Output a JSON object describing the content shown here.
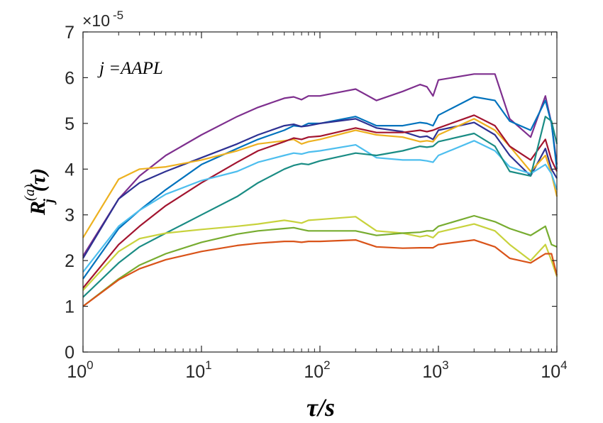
{
  "chart_data": {
    "type": "line",
    "annotation": "j =AAPL",
    "exponent_label": "×10",
    "exponent_power": "-5",
    "xlabel": "τ/s",
    "ylabel_main": "R",
    "ylabel_sub": "j",
    "ylabel_sup": "(a)",
    "ylabel_arg": "(τ)",
    "xscale": "log",
    "xlim": [
      1,
      10000
    ],
    "ylim": [
      0,
      7
    ],
    "grid": false,
    "x_tick_labels": [
      {
        "value": 1,
        "base": "10",
        "exp": "0"
      },
      {
        "value": 10,
        "base": "10",
        "exp": "1"
      },
      {
        "value": 100,
        "base": "10",
        "exp": "2"
      },
      {
        "value": 1000,
        "base": "10",
        "exp": "3"
      },
      {
        "value": 10000,
        "base": "10",
        "exp": "4"
      }
    ],
    "y_tick_labels": [
      "0",
      "1",
      "2",
      "3",
      "4",
      "5",
      "6",
      "7"
    ],
    "series": [
      {
        "color": "#7E2F8E",
        "x": [
          1,
          2,
          3,
          5,
          10,
          20,
          30,
          50,
          60,
          70,
          80,
          100,
          200,
          300,
          500,
          700,
          800,
          900,
          1000,
          2000,
          3000,
          4000,
          6000,
          8000,
          9000,
          10000
        ],
        "y": [
          2.1,
          3.35,
          3.85,
          4.3,
          4.75,
          5.15,
          5.35,
          5.55,
          5.58,
          5.52,
          5.6,
          5.6,
          5.75,
          5.5,
          5.7,
          5.85,
          5.8,
          5.6,
          5.95,
          6.08,
          6.08,
          5.1,
          4.7,
          5.6,
          5.0,
          4.1
        ]
      },
      {
        "color": "#0072BD",
        "x": [
          1,
          2,
          3,
          5,
          10,
          20,
          30,
          50,
          60,
          70,
          80,
          100,
          200,
          300,
          500,
          700,
          800,
          900,
          1000,
          2000,
          3000,
          4000,
          6000,
          8000,
          9000,
          10000
        ],
        "y": [
          1.6,
          2.7,
          3.1,
          3.55,
          4.1,
          4.45,
          4.65,
          4.85,
          4.95,
          4.93,
          5.0,
          5.0,
          5.15,
          4.95,
          4.95,
          5.02,
          5.0,
          4.95,
          5.18,
          5.58,
          5.5,
          5.05,
          4.85,
          5.5,
          5.0,
          4.0
        ]
      },
      {
        "color": "#2E3192",
        "x": [
          1,
          2,
          3,
          5,
          10,
          20,
          30,
          50,
          60,
          70,
          80,
          100,
          200,
          300,
          500,
          700,
          800,
          900,
          1000,
          2000,
          3000,
          4000,
          6000,
          8000,
          9000,
          10000
        ],
        "y": [
          2.05,
          3.35,
          3.7,
          3.95,
          4.25,
          4.55,
          4.75,
          4.95,
          4.98,
          4.93,
          4.95,
          5.0,
          5.1,
          4.9,
          4.82,
          4.7,
          4.72,
          4.65,
          4.85,
          5.02,
          4.75,
          4.3,
          3.85,
          4.45,
          4.0,
          3.8
        ]
      },
      {
        "color": "#EDB120",
        "x": [
          1,
          2,
          3,
          5,
          10,
          20,
          30,
          50,
          60,
          70,
          80,
          100,
          200,
          300,
          500,
          700,
          800,
          900,
          1000,
          2000,
          3000,
          4000,
          6000,
          8000,
          9000,
          10000
        ],
        "y": [
          2.5,
          3.78,
          4.0,
          4.05,
          4.2,
          4.4,
          4.55,
          4.62,
          4.65,
          4.55,
          4.6,
          4.65,
          4.85,
          4.75,
          4.7,
          4.6,
          4.62,
          4.6,
          4.75,
          5.1,
          4.85,
          4.5,
          3.95,
          4.3,
          3.9,
          3.4
        ]
      },
      {
        "color": "#A2142F",
        "x": [
          1,
          2,
          3,
          5,
          10,
          20,
          30,
          50,
          60,
          70,
          80,
          100,
          200,
          300,
          500,
          700,
          800,
          900,
          1000,
          2000,
          3000,
          4000,
          6000,
          8000,
          9000,
          10000
        ],
        "y": [
          1.4,
          2.35,
          2.75,
          3.2,
          3.7,
          4.15,
          4.4,
          4.6,
          4.68,
          4.65,
          4.7,
          4.72,
          4.9,
          4.8,
          4.8,
          4.85,
          4.82,
          4.85,
          4.9,
          5.18,
          4.95,
          4.5,
          4.2,
          4.65,
          4.2,
          3.95
        ]
      },
      {
        "color": "#4DBEEE",
        "x": [
          1,
          2,
          3,
          5,
          10,
          20,
          30,
          50,
          60,
          70,
          80,
          100,
          200,
          300,
          500,
          700,
          800,
          900,
          1000,
          2000,
          3000,
          4000,
          6000,
          8000,
          9000,
          10000
        ],
        "y": [
          1.75,
          2.75,
          3.1,
          3.45,
          3.75,
          3.95,
          4.15,
          4.3,
          4.35,
          4.33,
          4.37,
          4.4,
          4.53,
          4.25,
          4.2,
          4.2,
          4.18,
          4.15,
          4.3,
          4.62,
          4.4,
          4.05,
          3.9,
          4.1,
          3.9,
          3.55
        ]
      },
      {
        "color": "#1A8C84",
        "x": [
          1,
          2,
          3,
          5,
          10,
          20,
          30,
          50,
          60,
          70,
          80,
          100,
          200,
          300,
          500,
          700,
          800,
          900,
          1000,
          2000,
          3000,
          4000,
          6000,
          8000,
          9000,
          10000
        ],
        "y": [
          1.2,
          1.95,
          2.3,
          2.6,
          3.0,
          3.4,
          3.7,
          4.0,
          4.08,
          4.12,
          4.1,
          4.18,
          4.35,
          4.3,
          4.4,
          4.5,
          4.48,
          4.5,
          4.6,
          4.78,
          4.5,
          3.95,
          3.85,
          5.15,
          5.05,
          4.55
        ]
      },
      {
        "color": "#C8D23C",
        "x": [
          1,
          2,
          3,
          5,
          10,
          20,
          30,
          50,
          60,
          70,
          80,
          100,
          200,
          300,
          500,
          700,
          800,
          900,
          1000,
          2000,
          3000,
          4000,
          6000,
          8000,
          9000,
          10000
        ],
        "y": [
          1.35,
          2.2,
          2.48,
          2.6,
          2.68,
          2.75,
          2.8,
          2.88,
          2.85,
          2.82,
          2.88,
          2.9,
          2.96,
          2.65,
          2.6,
          2.52,
          2.55,
          2.5,
          2.62,
          2.8,
          2.65,
          2.35,
          2.0,
          2.35,
          2.0,
          1.65
        ]
      },
      {
        "color": "#77AC30",
        "x": [
          1,
          2,
          3,
          5,
          10,
          20,
          30,
          50,
          60,
          70,
          80,
          100,
          200,
          300,
          500,
          700,
          800,
          900,
          1000,
          2000,
          3000,
          4000,
          6000,
          8000,
          9000,
          10000
        ],
        "y": [
          1.0,
          1.6,
          1.9,
          2.15,
          2.4,
          2.58,
          2.65,
          2.7,
          2.72,
          2.68,
          2.65,
          2.65,
          2.65,
          2.55,
          2.6,
          2.62,
          2.65,
          2.65,
          2.75,
          2.98,
          2.85,
          2.7,
          2.55,
          2.75,
          2.35,
          2.3
        ]
      },
      {
        "color": "#D95319",
        "x": [
          1,
          2,
          3,
          5,
          10,
          20,
          30,
          50,
          60,
          70,
          80,
          100,
          200,
          300,
          500,
          700,
          800,
          900,
          1000,
          2000,
          3000,
          4000,
          6000,
          8000,
          9000,
          10000
        ],
        "y": [
          1.0,
          1.58,
          1.82,
          2.02,
          2.2,
          2.33,
          2.38,
          2.42,
          2.42,
          2.4,
          2.42,
          2.42,
          2.45,
          2.3,
          2.27,
          2.28,
          2.28,
          2.28,
          2.35,
          2.45,
          2.3,
          2.05,
          1.95,
          2.15,
          2.15,
          1.68
        ]
      }
    ]
  }
}
